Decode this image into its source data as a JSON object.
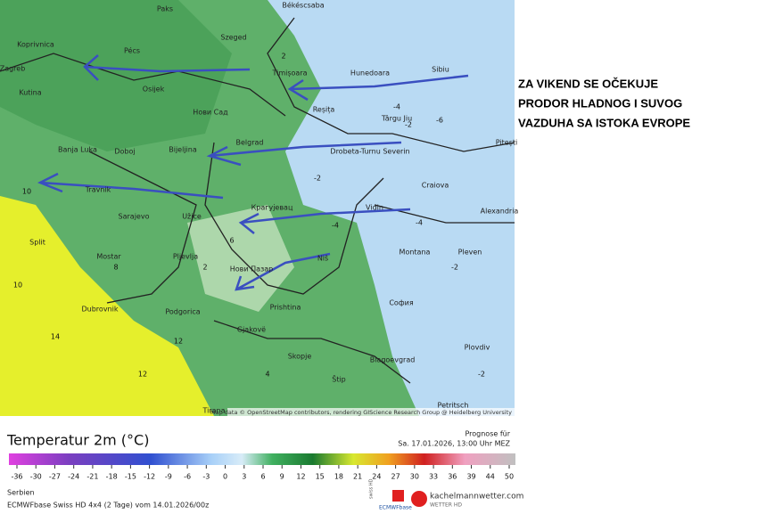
{
  "map": {
    "cities": [
      "Paks",
      "Békéscsaba",
      "Pécs",
      "Szeged",
      "Koprivnica",
      "Zagreb",
      "Osijek",
      "Kutina",
      "Timișoara",
      "Hunedoara",
      "Sibiu",
      "Нови Сад",
      "Reșița",
      "Târgu Jiu",
      "Banja Luka",
      "Doboj",
      "Bijeljina",
      "Belgrad",
      "Drobeta-Turnu Severin",
      "Pitești",
      "Travnik",
      "Craiova",
      "Sarajevo",
      "Užice",
      "Крагујевац",
      "Vidin",
      "Alexandria",
      "Split",
      "Mostar",
      "Pljevlja",
      "Нови Пазар",
      "Niš",
      "Montana",
      "Pleven",
      "Dubrovnik",
      "Podgorica",
      "Prishtina",
      "София",
      "Gjakovë",
      "Skopje",
      "Plovdiv",
      "Blagoevgrad",
      "Štip",
      "Petritsch",
      "Tirana"
    ],
    "value_labels": [
      "2",
      "-2",
      "-4",
      "-6",
      "10",
      "14",
      "12",
      "6",
      "-2",
      "-4",
      "2",
      "8",
      "-2",
      "-4",
      "-2",
      "4",
      "10",
      "12"
    ],
    "attribution": "Map data © OpenStreetMap contributors, rendering GIScience Research Group @ Heidelberg University"
  },
  "annotation": [
    "ZA VIKEND SE OČEKUJE",
    "PRODOR HLADNOG I SUVOG",
    "VAZDUHA SA ISTOKA EVROPE"
  ],
  "legend": {
    "title": "Temperatur 2m (°C)",
    "ticks": [
      -36,
      -30,
      -27,
      -24,
      -21,
      -18,
      -15,
      -12,
      -9,
      -6,
      -3,
      0,
      3,
      6,
      9,
      12,
      15,
      18,
      21,
      24,
      27,
      30,
      33,
      36,
      39,
      44,
      50
    ]
  },
  "forecast": {
    "label": "Prognose für",
    "date": "Sa. 17.01.2026, 13:00 Uhr MEZ"
  },
  "footer": {
    "region": "Serbien",
    "model": "ECMWFbase Swiss HD 4x4 (2 Tage) vom 14.01.2026/00z",
    "logo_left": "swiss HD",
    "logo_left2": "ECMWFbase",
    "site": "kachelmannwetter.com",
    "site_sub": "WETTER HD"
  }
}
